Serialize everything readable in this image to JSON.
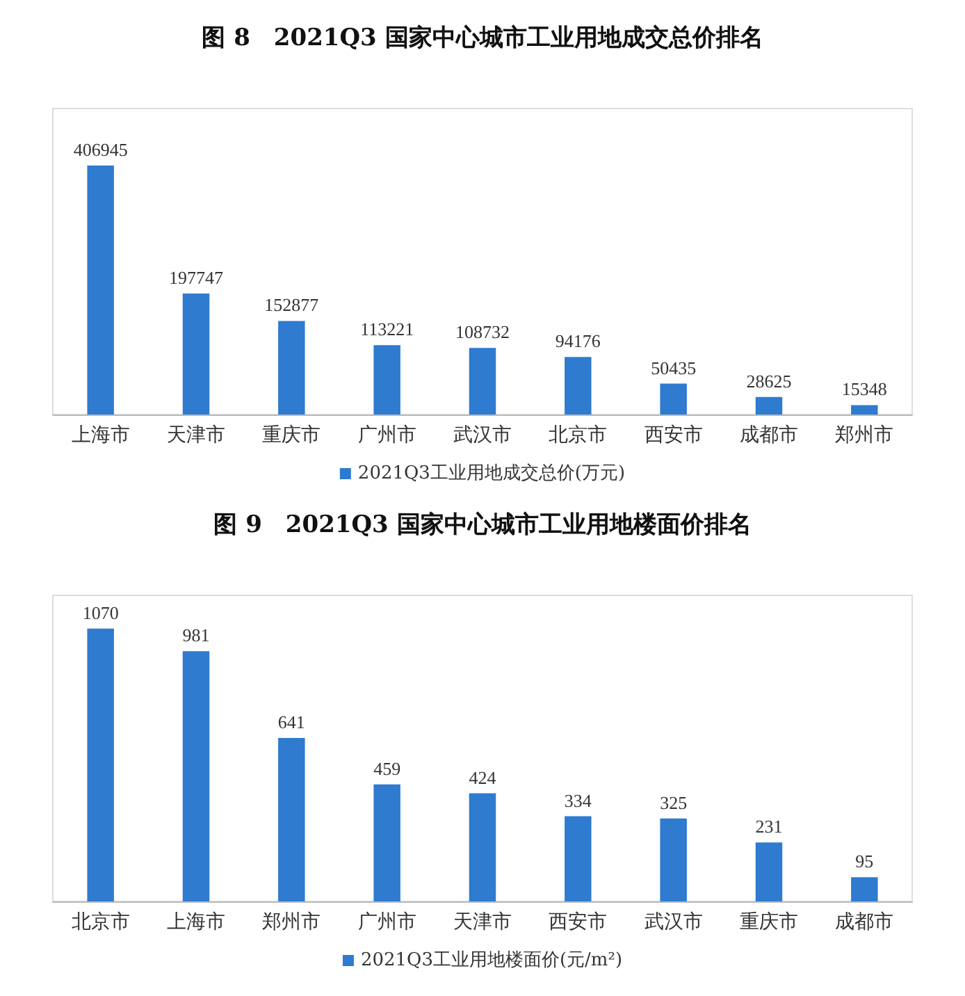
{
  "chart_data": [
    {
      "type": "bar",
      "title": "图 8　2021Q3 国家中心城市工业用地成交总价排名",
      "categories": [
        "上海市",
        "天津市",
        "重庆市",
        "广州市",
        "武汉市",
        "北京市",
        "西安市",
        "成都市",
        "郑州市"
      ],
      "series": [
        {
          "name": "2021Q3工业用地成交总价(万元)",
          "color": "#2e7bcf",
          "values": [
            406945,
            197747,
            152877,
            113221,
            108732,
            94176,
            50435,
            28625,
            15348
          ]
        }
      ],
      "data_labels": true,
      "tick_labels": "x",
      "legend": "bottom",
      "grid": false
    },
    {
      "type": "bar",
      "title": "图 9　2021Q3 国家中心城市工业用地楼面价排名",
      "categories": [
        "北京市",
        "上海市",
        "郑州市",
        "广州市",
        "天津市",
        "西安市",
        "武汉市",
        "重庆市",
        "成都市"
      ],
      "series": [
        {
          "name": "2021Q3工业用地楼面价(元/m²)",
          "color": "#2e7bcf",
          "values": [
            1070,
            981,
            641,
            459,
            424,
            334,
            325,
            231,
            95
          ]
        }
      ],
      "data_labels": true,
      "tick_labels": "x",
      "legend": "bottom",
      "grid": false
    }
  ]
}
